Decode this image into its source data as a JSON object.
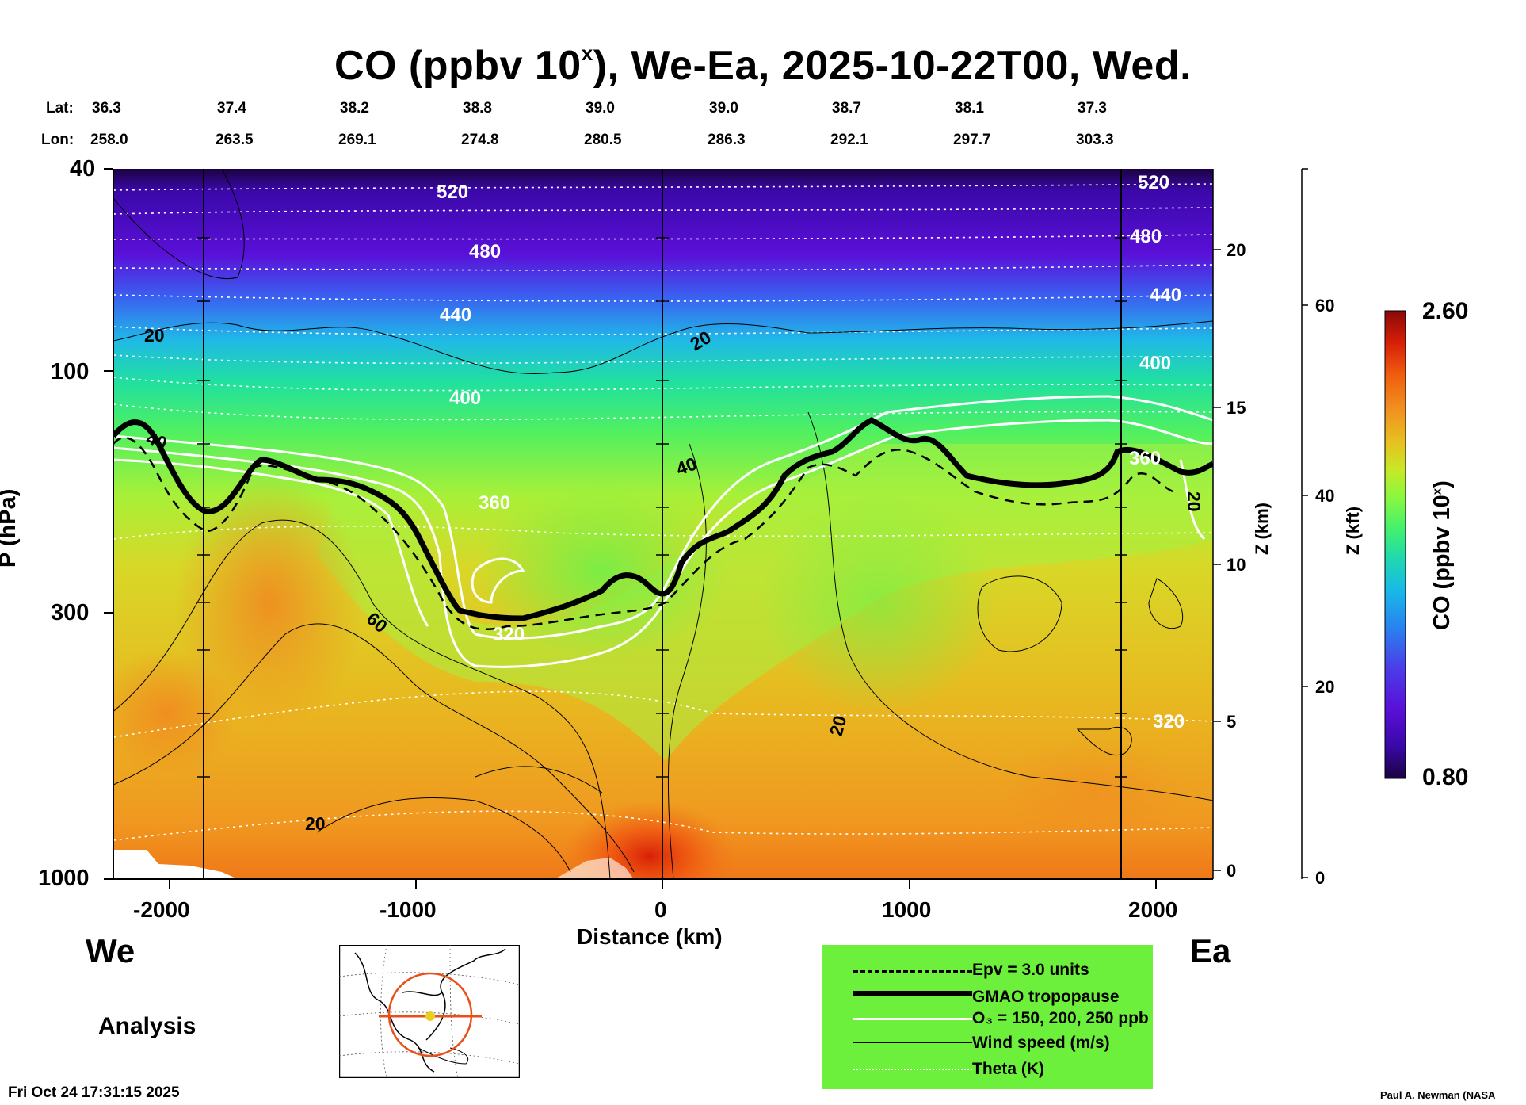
{
  "chart_data": {
    "type": "heatmap",
    "title": "CO (ppbv 10",
    "title_sup": "x",
    "title_rest": "), We-Ea, 2025-10-22T00, Wed.",
    "lat_label": "Lat:",
    "lon_label": "Lon:",
    "lats": [
      "36.3",
      "37.4",
      "38.2",
      "38.8",
      "39.0",
      "39.0",
      "38.7",
      "38.1",
      "37.3"
    ],
    "lons": [
      "258.0",
      "263.5",
      "269.1",
      "274.8",
      "280.5",
      "286.3",
      "292.1",
      "297.7",
      "303.3"
    ],
    "xlabel": "Distance (km)",
    "ylabel": "P (hPa)",
    "x_range": [
      -2250,
      2250
    ],
    "y_range_hpa": [
      1000,
      40
    ],
    "y_scale": "log",
    "x_ticks": [
      "-2000",
      "-1000",
      "0",
      "1000",
      "2000"
    ],
    "y_ticks": [
      "40",
      "100",
      "300",
      "1000"
    ],
    "z_km_label": "Z (km)",
    "z_km_ticks": [
      "20",
      "15",
      "10",
      "5",
      "0"
    ],
    "z_kft_label": "Z (kft)",
    "z_kft_ticks": [
      "60",
      "40",
      "20",
      "0"
    ],
    "colorbar": {
      "label": "CO (ppbv 10",
      "label_sup": "x",
      "label_rest": ")",
      "min": "0.80",
      "max": "2.60",
      "colors": [
        "#1a0340",
        "#3a08a8",
        "#5a10d8",
        "#4a40e8",
        "#2a80f0",
        "#18b8e8",
        "#20d8b0",
        "#40f070",
        "#88f840",
        "#c8e828",
        "#e8c020",
        "#f09020",
        "#f06010",
        "#d82008",
        "#8a0808"
      ]
    },
    "contour_labels": {
      "theta": [
        "520",
        "480",
        "440",
        "400",
        "360",
        "320",
        "520",
        "480",
        "440",
        "400",
        "360",
        "320"
      ],
      "wind": [
        "20",
        "20",
        "40",
        "60",
        "20",
        "20",
        "40",
        "20"
      ],
      "ozone": [
        "320",
        "40"
      ]
    },
    "legend": [
      {
        "label": "Epv = 3.0 units",
        "style": "dashed-black"
      },
      {
        "label": "GMAO tropopause",
        "style": "thick-black"
      },
      {
        "label": "O₃ = 150, 200, 250 ppb",
        "style": "white"
      },
      {
        "label": "Wind speed (m/s)",
        "style": "thin-black"
      },
      {
        "label": "Theta (K)",
        "style": "dotted-white"
      }
    ],
    "direction_left": "We",
    "direction_right": "Ea",
    "analysis_label": "Analysis",
    "timestamp": "Fri Oct 24 17:31:15 2025",
    "credit": "Paul A. Newman (NASA"
  }
}
